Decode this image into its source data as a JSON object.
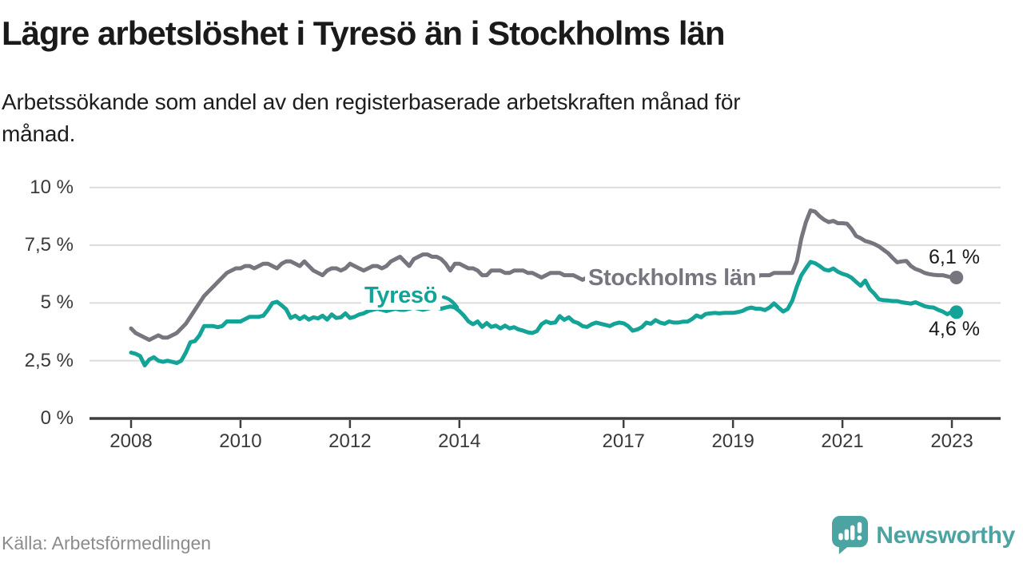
{
  "title": "Lägre arbetslöshet i Tyresö än i Stockholms län",
  "subtitle": "Arbetssökande som andel av den registerbaserade arbetskraften månad för månad.",
  "subtitle_lines": [
    "Arbetssökande som andel av den registerbaserade arbetskraften månad för",
    "månad."
  ],
  "source": "Källa: Arbetsförmedlingen",
  "brand": {
    "name": "Newsworthy",
    "color": "#4ba4a1",
    "icon": "newsworthy-speech-bubble-bar-chart-icon"
  },
  "colors": {
    "tyreso_line": "#14a397",
    "stockholm_line": "#77757e",
    "gridline": "#dcdcdc",
    "axis": "#3f3f3f",
    "tick_text": "#3a3a3a",
    "heading_text": "#1a1a1a",
    "muted_text": "#8c8c8c"
  },
  "chart_data": {
    "type": "line",
    "title": "Lägre arbetslöshet i Tyresö än i Stockholms län",
    "subtitle": "Arbetssökande som andel av den registerbaserade arbetskraften månad för månad.",
    "unit": "%",
    "x_unit": "month",
    "x_start": "2008-01",
    "x_end": "2023-02",
    "grid": "horizontal",
    "legend_position": "inline-labels",
    "ylim": [
      0,
      10
    ],
    "y_ticks": [
      0,
      2.5,
      5,
      7.5,
      10
    ],
    "y_tick_labels": [
      "0 %",
      "2,5 %",
      "5 %",
      "7,5 %",
      "10 %"
    ],
    "x_tick_years": [
      2008,
      2010,
      2012,
      2014,
      2017,
      2019,
      2021,
      2023
    ],
    "x_tick_labels": [
      "2008",
      "2010",
      "2012",
      "2014",
      "2017",
      "2019",
      "2021",
      "2023"
    ],
    "series": [
      {
        "name": "Stockholms län",
        "color": "#77757e",
        "end_label": "6,1 %",
        "end_value": 6.1,
        "values": [
          3.9,
          3.7,
          3.6,
          3.5,
          3.4,
          3.5,
          3.6,
          3.5,
          3.5,
          3.6,
          3.7,
          3.9,
          4.1,
          4.4,
          4.7,
          5.0,
          5.3,
          5.5,
          5.7,
          5.9,
          6.1,
          6.3,
          6.4,
          6.5,
          6.5,
          6.6,
          6.6,
          6.5,
          6.6,
          6.7,
          6.7,
          6.6,
          6.5,
          6.7,
          6.8,
          6.8,
          6.7,
          6.6,
          6.8,
          6.6,
          6.4,
          6.3,
          6.2,
          6.4,
          6.5,
          6.5,
          6.4,
          6.5,
          6.7,
          6.6,
          6.5,
          6.4,
          6.5,
          6.6,
          6.6,
          6.5,
          6.6,
          6.8,
          6.9,
          7.0,
          6.8,
          6.6,
          6.9,
          7.0,
          7.1,
          7.1,
          7.0,
          7.0,
          6.9,
          6.7,
          6.4,
          6.7,
          6.7,
          6.6,
          6.5,
          6.5,
          6.4,
          6.2,
          6.2,
          6.4,
          6.4,
          6.4,
          6.3,
          6.3,
          6.4,
          6.4,
          6.4,
          6.3,
          6.3,
          6.2,
          6.1,
          6.2,
          6.3,
          6.3,
          6.3,
          6.2,
          6.2,
          6.2,
          6.1,
          6.0,
          6.1,
          6.1,
          6.0,
          6.1,
          6.1,
          6.1,
          6.1,
          6.0,
          6.0,
          6.1,
          6.1,
          6.0,
          6.0,
          6.1,
          6.1,
          6.0,
          6.0,
          6.1,
          6.1,
          6.0,
          6.0,
          6.0,
          6.1,
          6.1,
          6.0,
          6.0,
          6.1,
          6.0,
          6.0,
          6.0,
          6.1,
          6.1,
          6.1,
          6.0,
          6.0,
          6.1,
          6.1,
          6.1,
          6.2,
          6.2,
          6.2,
          6.3,
          6.3,
          6.3,
          6.3,
          6.3,
          6.8,
          7.8,
          8.5,
          9.0,
          8.95,
          8.75,
          8.6,
          8.5,
          8.55,
          8.45,
          8.45,
          8.43,
          8.2,
          7.9,
          7.8,
          7.68,
          7.63,
          7.55,
          7.45,
          7.3,
          7.16,
          6.95,
          6.76,
          6.8,
          6.82,
          6.6,
          6.47,
          6.4,
          6.3,
          6.25,
          6.22,
          6.2,
          6.2,
          6.15,
          6.1,
          6.1
        ]
      },
      {
        "name": "Tyresö",
        "color": "#14a397",
        "end_label": "4,6 %",
        "end_value": 4.6,
        "values": [
          2.85,
          2.8,
          2.7,
          2.3,
          2.55,
          2.65,
          2.5,
          2.45,
          2.5,
          2.45,
          2.4,
          2.5,
          2.85,
          3.3,
          3.35,
          3.6,
          4.0,
          4.0,
          4.0,
          3.95,
          4.0,
          4.2,
          4.2,
          4.2,
          4.2,
          4.3,
          4.4,
          4.4,
          4.4,
          4.45,
          4.7,
          5.0,
          5.05,
          4.9,
          4.73,
          4.35,
          4.45,
          4.3,
          4.42,
          4.28,
          4.38,
          4.33,
          4.45,
          4.28,
          4.5,
          4.35,
          4.38,
          4.55,
          4.35,
          4.4,
          4.5,
          4.55,
          4.65,
          4.7,
          4.75,
          4.7,
          4.65,
          4.7,
          4.75,
          4.7,
          4.7,
          4.75,
          4.8,
          4.75,
          4.7,
          4.75,
          4.8,
          4.8,
          4.75,
          4.8,
          4.85,
          4.8,
          4.65,
          4.45,
          4.2,
          4.08,
          4.2,
          3.96,
          4.13,
          3.96,
          4.02,
          3.9,
          4.02,
          3.9,
          3.95,
          3.85,
          3.8,
          3.73,
          3.7,
          3.78,
          4.08,
          4.2,
          4.13,
          4.15,
          4.43,
          4.27,
          4.38,
          4.2,
          4.13,
          4.0,
          3.96,
          4.08,
          4.15,
          4.1,
          4.05,
          4.0,
          4.1,
          4.15,
          4.12,
          4.0,
          3.8,
          3.85,
          3.95,
          4.15,
          4.1,
          4.26,
          4.15,
          4.1,
          4.2,
          4.15,
          4.15,
          4.19,
          4.19,
          4.3,
          4.46,
          4.38,
          4.52,
          4.55,
          4.57,
          4.55,
          4.57,
          4.57,
          4.57,
          4.6,
          4.65,
          4.75,
          4.8,
          4.75,
          4.75,
          4.69,
          4.8,
          4.98,
          4.8,
          4.63,
          4.74,
          5.1,
          5.7,
          6.2,
          6.5,
          6.78,
          6.72,
          6.6,
          6.45,
          6.4,
          6.49,
          6.35,
          6.26,
          6.2,
          6.09,
          5.91,
          5.74,
          5.97,
          5.6,
          5.4,
          5.16,
          5.12,
          5.11,
          5.08,
          5.08,
          5.03,
          5.0,
          4.97,
          5.03,
          4.95,
          4.86,
          4.82,
          4.8,
          4.7,
          4.63,
          4.51,
          4.62,
          4.6
        ]
      }
    ]
  }
}
